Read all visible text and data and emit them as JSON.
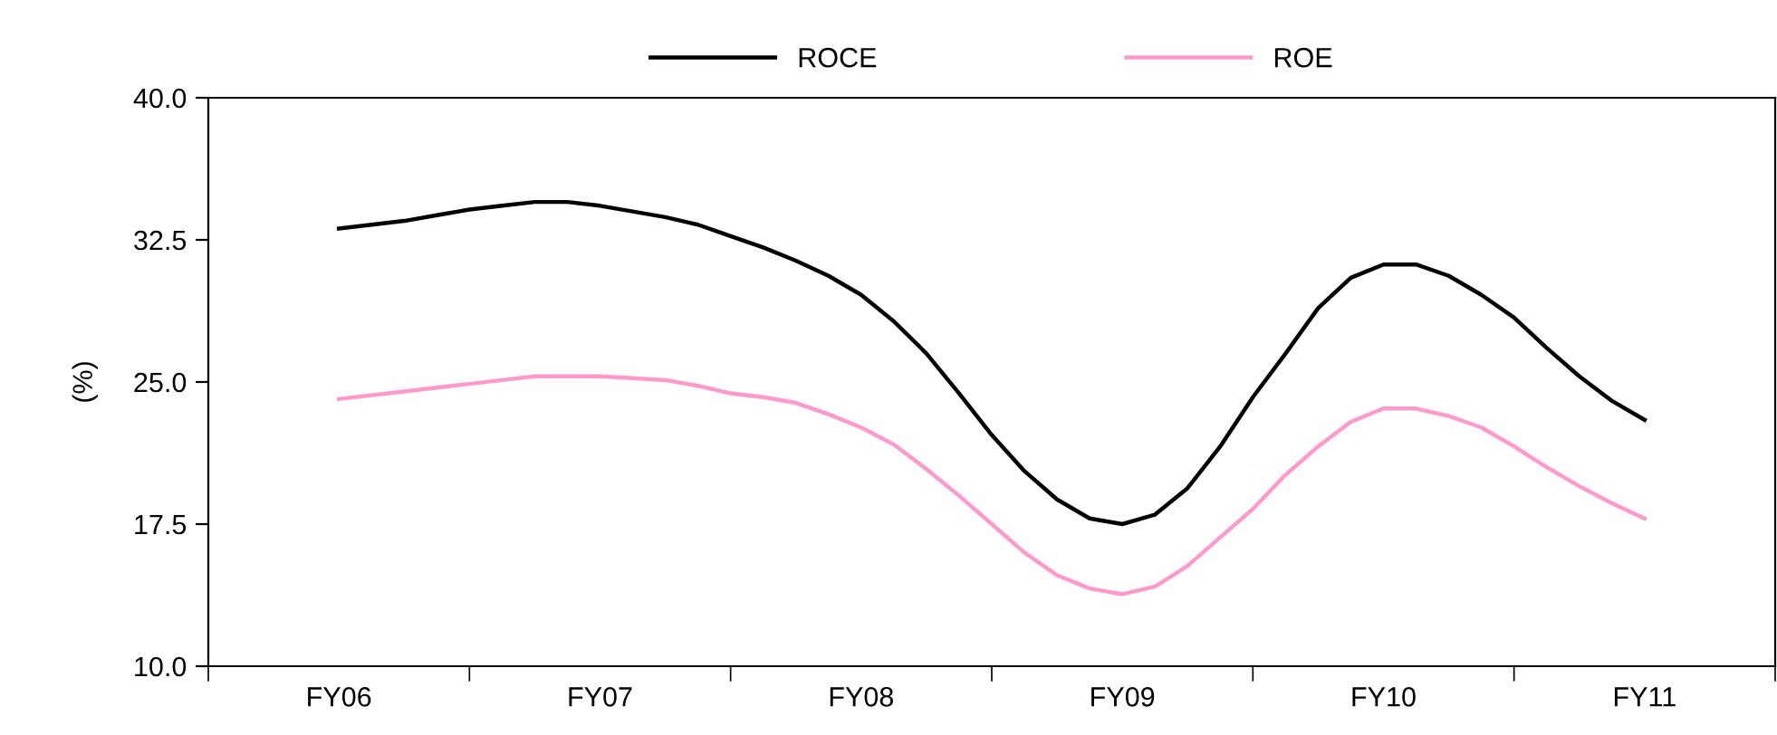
{
  "chart_data": {
    "type": "line",
    "ylabel": "(%)",
    "categories": [
      "FY06",
      null,
      null,
      null,
      null,
      null,
      null,
      null,
      "FY07",
      null,
      null,
      null,
      null,
      null,
      null,
      null,
      "FY08",
      null,
      null,
      null,
      null,
      null,
      null,
      null,
      "FY09",
      null,
      null,
      null,
      null,
      null,
      null,
      null,
      "FY10",
      null,
      null,
      null,
      null,
      null,
      null,
      null,
      "FY11"
    ],
    "series": [
      {
        "name": "ROCE",
        "color": "#000000",
        "values": [
          33.1,
          33.3,
          33.5,
          33.8,
          34.1,
          34.3,
          34.5,
          34.5,
          34.3,
          34.0,
          33.7,
          33.3,
          32.7,
          32.1,
          31.4,
          30.6,
          29.6,
          28.2,
          26.5,
          24.4,
          22.2,
          20.3,
          18.8,
          17.8,
          17.5,
          18.0,
          19.4,
          21.6,
          24.2,
          26.5,
          28.9,
          30.5,
          31.2,
          31.2,
          30.6,
          29.6,
          28.4,
          26.8,
          25.3,
          24.0,
          23.0
        ]
      },
      {
        "name": "ROE",
        "color": "#ff99cc",
        "values": [
          24.1,
          24.3,
          24.5,
          24.7,
          24.9,
          25.1,
          25.3,
          25.3,
          25.3,
          25.2,
          25.1,
          24.8,
          24.4,
          24.2,
          23.9,
          23.3,
          22.6,
          21.7,
          20.4,
          19.0,
          17.5,
          16.0,
          14.8,
          14.1,
          13.8,
          14.2,
          15.3,
          16.8,
          18.3,
          20.1,
          21.6,
          22.9,
          23.6,
          23.6,
          23.2,
          22.6,
          21.6,
          20.5,
          19.5,
          18.6,
          17.8
        ]
      }
    ],
    "ylim": [
      10,
      40
    ],
    "yticks": [
      {
        "value": 10,
        "label": "10.0"
      },
      {
        "value": 17.5,
        "label": "17.5"
      },
      {
        "value": 25,
        "label": "25.0"
      },
      {
        "value": 32.5,
        "label": "32.5"
      },
      {
        "value": 40,
        "label": "40.0"
      }
    ],
    "grid": false,
    "legend": "top",
    "marker": "none",
    "line_style": "solid"
  }
}
